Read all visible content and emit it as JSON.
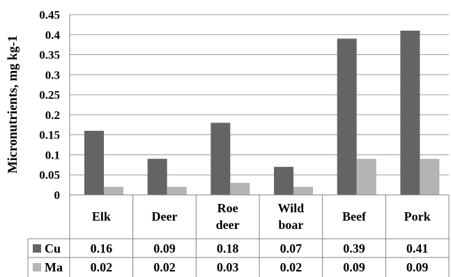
{
  "chart_data": {
    "type": "bar",
    "ylabel": "Micronutrients, mg kg-1",
    "ylim": [
      0,
      0.45
    ],
    "ytick_labels": [
      "0",
      "0.05",
      "0.1",
      "0.15",
      "0.2",
      "0.25",
      "0.3",
      "0.35",
      "0.4",
      "0.45"
    ],
    "yticks": [
      0,
      0.05,
      0.1,
      0.15,
      0.2,
      0.25,
      0.3,
      0.35,
      0.4,
      0.45
    ],
    "grid": true,
    "categories": [
      [
        "Elk"
      ],
      [
        "Deer"
      ],
      [
        "Roe",
        "deer"
      ],
      [
        "Wild",
        "boar"
      ],
      [
        "Beef"
      ],
      [
        "Pork"
      ]
    ],
    "series": [
      {
        "name": "Cu",
        "color": "#646464",
        "values": [
          0.16,
          0.09,
          0.18,
          0.07,
          0.39,
          0.41
        ],
        "labels": [
          "0.16",
          "0.09",
          "0.18",
          "0.07",
          "0.39",
          "0.41"
        ]
      },
      {
        "name": "Ma",
        "color": "#b4b4b4",
        "values": [
          0.02,
          0.02,
          0.03,
          0.02,
          0.09,
          0.09
        ],
        "labels": [
          "0.02",
          "0.02",
          "0.03",
          "0.02",
          "0.09",
          "0.09"
        ]
      }
    ],
    "legend": "data-table-rows"
  }
}
